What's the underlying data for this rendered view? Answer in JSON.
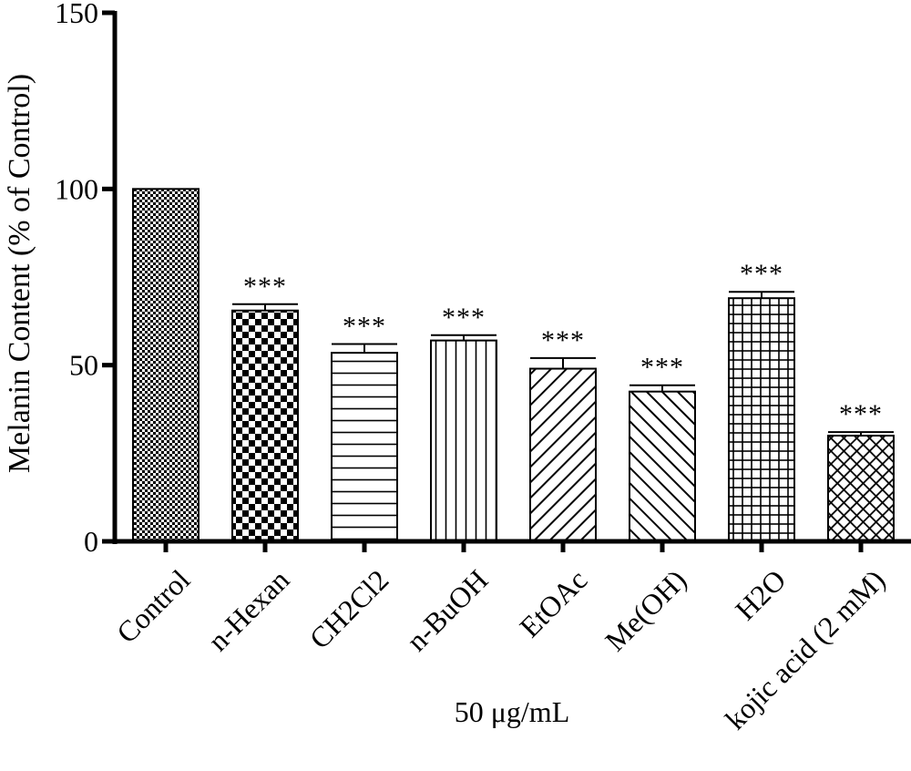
{
  "chart_data": {
    "type": "bar",
    "title": "",
    "ylabel": "Melanin Content (% of Control)",
    "xlabel": "50 μg/mL",
    "ylim": [
      0,
      150
    ],
    "yticks": [
      0,
      50,
      100,
      150
    ],
    "categories": [
      "Control",
      "n-Hexan",
      "CH2Cl2",
      "n-BuOH",
      "EtOAc",
      "Me(OH)",
      "H2O",
      "kojic acid (2 mM)"
    ],
    "values": [
      100,
      65.5,
      53.5,
      57,
      49,
      42.5,
      69,
      30
    ],
    "errors": [
      0,
      1.8,
      2.5,
      1.5,
      3,
      1.8,
      1.8,
      1
    ],
    "significance": [
      "",
      "***",
      "***",
      "***",
      "***",
      "***",
      "***",
      "***"
    ],
    "patterns": [
      "fine-checker",
      "checker",
      "horizontal",
      "vertical",
      "diagonal-up",
      "diagonal-down",
      "grid",
      "diamond"
    ],
    "bar_color": "#000000",
    "background": "#ffffff"
  }
}
